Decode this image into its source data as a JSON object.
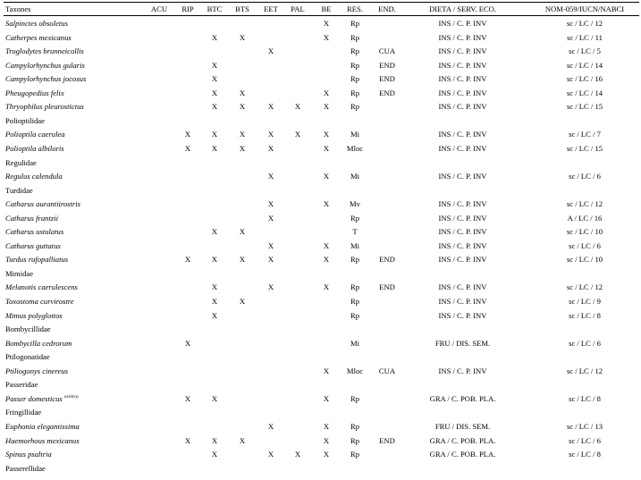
{
  "headers": {
    "taxa": "Taxones",
    "acu": "ACU",
    "rip": "RIP",
    "btc": "BTC",
    "bts": "BTS",
    "eet": "EET",
    "pal": "PAL",
    "be": "BE",
    "res": "RES.",
    "end": "END.",
    "dieta": "DIETA / SERV. ECO.",
    "nom": "NOM-059/IUCN/NABCI"
  },
  "rows": [
    {
      "type": "species",
      "name": "Salpinctes obsoletus",
      "acu": "",
      "rip": "",
      "btc": "",
      "bts": "",
      "eet": "",
      "pal": "",
      "be": "X",
      "res": "Rp",
      "end": "",
      "dieta": "INS / C. P. INV",
      "nom": "sc / LC / 12"
    },
    {
      "type": "species",
      "name": "Catherpes mexicanus",
      "acu": "",
      "rip": "",
      "btc": "X",
      "bts": "X",
      "eet": "",
      "pal": "",
      "be": "X",
      "res": "Rp",
      "end": "",
      "dieta": "INS / C. P. INV",
      "nom": "sc / LC / 11"
    },
    {
      "type": "species",
      "name": "Troglodytes brunneicollis",
      "acu": "",
      "rip": "",
      "btc": "",
      "bts": "",
      "eet": "X",
      "pal": "",
      "be": "",
      "res": "Rp",
      "end": "CUA",
      "dieta": "INS / C. P. INV",
      "nom": "sc / LC / 5"
    },
    {
      "type": "species",
      "name": "Campylorhynchus gularis",
      "acu": "",
      "rip": "",
      "btc": "X",
      "bts": "",
      "eet": "",
      "pal": "",
      "be": "",
      "res": "Rp",
      "end": "END",
      "dieta": "INS / C. P. INV",
      "nom": "sc / LC / 14"
    },
    {
      "type": "species",
      "name": "Campylorhynchus jocosus",
      "acu": "",
      "rip": "",
      "btc": "X",
      "bts": "",
      "eet": "",
      "pal": "",
      "be": "",
      "res": "Rp",
      "end": "END",
      "dieta": "INS / C. P. INV",
      "nom": "sc / LC / 16"
    },
    {
      "type": "species",
      "name": "Pheugopedius felix",
      "acu": "",
      "rip": "",
      "btc": "X",
      "bts": "X",
      "eet": "",
      "pal": "",
      "be": "X",
      "res": "Rp",
      "end": "END",
      "dieta": "INS / C. P. INV",
      "nom": "sc / LC / 14"
    },
    {
      "type": "species",
      "name": "Thryophilus pleurostictus",
      "acu": "",
      "rip": "",
      "btc": "X",
      "bts": "X",
      "eet": "X",
      "pal": "X",
      "be": "X",
      "res": "Rp",
      "end": "",
      "dieta": "INS / C. P. INV",
      "nom": "sc / LC / 15"
    },
    {
      "type": "family",
      "name": "Polioptilidae"
    },
    {
      "type": "species",
      "name": "Polioptila caerulea",
      "acu": "",
      "rip": "X",
      "btc": "X",
      "bts": "X",
      "eet": "X",
      "pal": "X",
      "be": "X",
      "res": "Mi",
      "end": "",
      "dieta": "INS / C. P. INV",
      "nom": "sc / LC / 7"
    },
    {
      "type": "species",
      "name": "Polioptila albiloris",
      "acu": "",
      "rip": "X",
      "btc": "X",
      "bts": "X",
      "eet": "X",
      "pal": "",
      "be": "X",
      "res": "Mloc",
      "end": "",
      "dieta": "INS / C. P. INV",
      "nom": "sc / LC / 15"
    },
    {
      "type": "family",
      "name": "Regulidae"
    },
    {
      "type": "species",
      "name": "Regulus calendula",
      "acu": "",
      "rip": "",
      "btc": "",
      "bts": "",
      "eet": "X",
      "pal": "",
      "be": "X",
      "res": "Mi",
      "end": "",
      "dieta": "INS / C. P. INV",
      "nom": "sc / LC / 6"
    },
    {
      "type": "family",
      "name": "Turdidae"
    },
    {
      "type": "species",
      "name": "Catharus aurantiirostris",
      "acu": "",
      "rip": "",
      "btc": "",
      "bts": "",
      "eet": "X",
      "pal": "",
      "be": "X",
      "res": "Mv",
      "end": "",
      "dieta": "INS / C. P. INV",
      "nom": "sc / LC / 12"
    },
    {
      "type": "species",
      "name": "Catharus frantzii",
      "acu": "",
      "rip": "",
      "btc": "",
      "bts": "",
      "eet": "X",
      "pal": "",
      "be": "",
      "res": "Rp",
      "end": "",
      "dieta": "INS / C. P. INV",
      "nom": "A / LC / 16"
    },
    {
      "type": "species",
      "name": "Catharus ustulatus",
      "acu": "",
      "rip": "",
      "btc": "X",
      "bts": "X",
      "eet": "",
      "pal": "",
      "be": "",
      "res": "T",
      "end": "",
      "dieta": "INS / C. P. INV",
      "nom": "sc / LC / 10"
    },
    {
      "type": "species",
      "name": "Catharus guttatus",
      "acu": "",
      "rip": "",
      "btc": "",
      "bts": "",
      "eet": "X",
      "pal": "",
      "be": "X",
      "res": "Mi",
      "end": "",
      "dieta": "INS / C. P. INV",
      "nom": "sc / LC / 6"
    },
    {
      "type": "species",
      "name": "Turdus rufopalliatus",
      "acu": "",
      "rip": "X",
      "btc": "X",
      "bts": "X",
      "eet": "X",
      "pal": "",
      "be": "X",
      "res": "Rp",
      "end": "END",
      "dieta": "INS / C. P. INV",
      "nom": "sc / LC / 10"
    },
    {
      "type": "family",
      "name": "Mimidae"
    },
    {
      "type": "species",
      "name": "Melanotis caerulescens",
      "acu": "",
      "rip": "",
      "btc": "X",
      "bts": "",
      "eet": "X",
      "pal": "",
      "be": "X",
      "res": "Rp",
      "end": "END",
      "dieta": "INS / C. P. INV",
      "nom": "sc / LC / 12"
    },
    {
      "type": "species",
      "name": "Toxostoma curvirostre",
      "acu": "",
      "rip": "",
      "btc": "X",
      "bts": "X",
      "eet": "",
      "pal": "",
      "be": "",
      "res": "Rp",
      "end": "",
      "dieta": "INS / C. P. INV",
      "nom": "sc / LC / 9"
    },
    {
      "type": "species",
      "name": "Mimus polyglottos",
      "acu": "",
      "rip": "",
      "btc": "X",
      "bts": "",
      "eet": "",
      "pal": "",
      "be": "",
      "res": "Rp",
      "end": "",
      "dieta": "INS / C. P. INV",
      "nom": "sc / LC / 8"
    },
    {
      "type": "family",
      "name": "Bombycillidae"
    },
    {
      "type": "species",
      "name": "Bombycilla cedrorum",
      "acu": "",
      "rip": "X",
      "btc": "",
      "bts": "",
      "eet": "",
      "pal": "",
      "be": "",
      "res": "Mi",
      "end": "",
      "dieta": "FRU / DIS. SEM.",
      "nom": "sc / LC / 6"
    },
    {
      "type": "family",
      "name": "Ptilogonatidae"
    },
    {
      "type": "species",
      "name": "Ptiliogonys cinereus",
      "acu": "",
      "rip": "",
      "btc": "",
      "bts": "",
      "eet": "",
      "pal": "",
      "be": "X",
      "res": "Mloc",
      "end": "CUA",
      "dieta": "INS / C. P. INV",
      "nom": "sc / LC / 12"
    },
    {
      "type": "family",
      "name": "Passeridae"
    },
    {
      "type": "species",
      "name": "Passer domesticus",
      "sup": "exótica",
      "acu": "",
      "rip": "X",
      "btc": "X",
      "bts": "",
      "eet": "",
      "pal": "",
      "be": "X",
      "res": "Rp",
      "end": "",
      "dieta": "GRA / C. POB. PLA.",
      "nom": "sc / LC / 8"
    },
    {
      "type": "family",
      "name": "Fringillidae"
    },
    {
      "type": "species",
      "name": "Euphonia elegantissima",
      "acu": "",
      "rip": "",
      "btc": "",
      "bts": "",
      "eet": "X",
      "pal": "",
      "be": "X",
      "res": "Rp",
      "end": "",
      "dieta": "FRU / DIS. SEM.",
      "nom": "sc / LC / 13"
    },
    {
      "type": "species",
      "name": "Haemorhous mexicanus",
      "acu": "",
      "rip": "X",
      "btc": "X",
      "bts": "X",
      "eet": "",
      "pal": "",
      "be": "X",
      "res": "Rp",
      "end": "END",
      "dieta": "GRA / C. POB. PLA.",
      "nom": "sc / LC / 6"
    },
    {
      "type": "species",
      "name": "Spinus psaltria",
      "acu": "",
      "rip": "",
      "btc": "X",
      "bts": "",
      "eet": "X",
      "pal": "X",
      "be": "X",
      "res": "Rp",
      "end": "",
      "dieta": "GRA / C. POB. PLA.",
      "nom": "sc / LC / 8"
    },
    {
      "type": "family",
      "name": "Passerellidae"
    }
  ]
}
